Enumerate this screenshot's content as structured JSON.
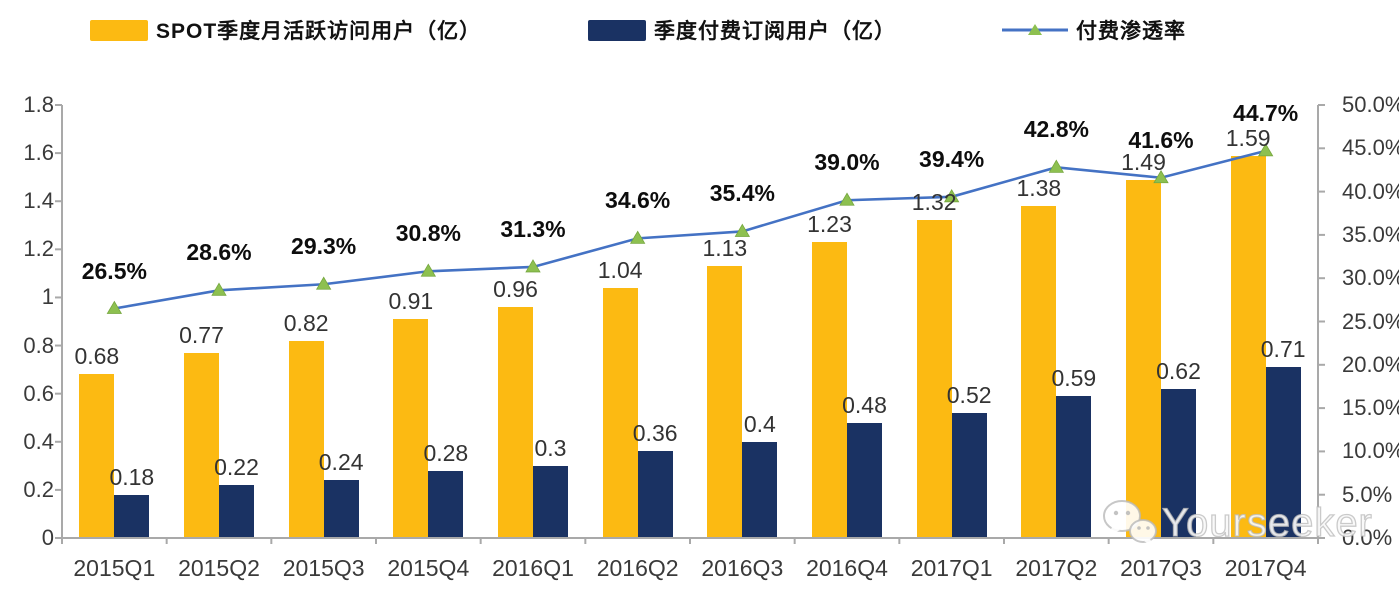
{
  "legend": {
    "items": [
      {
        "label": "SPOT季度月活跃访问用户（亿）",
        "type": "bar",
        "color": "#FCBA12"
      },
      {
        "label": "季度付费订阅用户（亿）",
        "type": "bar",
        "color": "#1A3263"
      },
      {
        "label": "付费渗透率",
        "type": "line",
        "color": "#4472C4",
        "marker_color": "#8DC050"
      }
    ]
  },
  "chart_data": {
    "type": "bar+line",
    "categories": [
      "2015Q1",
      "2015Q2",
      "2015Q3",
      "2015Q4",
      "2016Q1",
      "2016Q2",
      "2016Q3",
      "2016Q4",
      "2017Q1",
      "2017Q2",
      "2017Q3",
      "2017Q4"
    ],
    "series": [
      {
        "name": "SPOT季度月活跃访问用户（亿）",
        "type": "bar",
        "color": "#FCBA12",
        "axis": "left",
        "values": [
          0.68,
          0.77,
          0.82,
          0.91,
          0.96,
          1.04,
          1.13,
          1.23,
          1.32,
          1.38,
          1.49,
          1.59
        ],
        "labels": [
          "0.68",
          "0.77",
          "0.82",
          "0.91",
          "0.96",
          "1.04",
          "1.13",
          "1.23",
          "1.32",
          "1.38",
          "1.49",
          "1.59"
        ]
      },
      {
        "name": "季度付费订阅用户（亿）",
        "type": "bar",
        "color": "#1A3263",
        "axis": "left",
        "values": [
          0.18,
          0.22,
          0.24,
          0.28,
          0.3,
          0.36,
          0.4,
          0.48,
          0.52,
          0.59,
          0.62,
          0.71
        ],
        "labels": [
          "0.18",
          "0.22",
          "0.24",
          "0.28",
          "0.3",
          "0.36",
          "0.4",
          "0.48",
          "0.52",
          "0.59",
          "0.62",
          "0.71"
        ]
      },
      {
        "name": "付费渗透率",
        "type": "line",
        "color": "#4472C4",
        "marker": "triangle",
        "marker_color": "#8DC050",
        "axis": "right",
        "values": [
          26.5,
          28.6,
          29.3,
          30.8,
          31.3,
          34.6,
          35.4,
          39.0,
          39.4,
          42.8,
          41.6,
          44.7
        ],
        "labels": [
          "26.5%",
          "28.6%",
          "29.3%",
          "30.8%",
          "31.3%",
          "34.6%",
          "35.4%",
          "39.0%",
          "39.4%",
          "42.8%",
          "41.6%",
          "44.7%"
        ]
      }
    ],
    "left_axis": {
      "min": 0,
      "max": 1.8,
      "step": 0.2,
      "tick_labels": [
        "0",
        "0.2",
        "0.4",
        "0.6",
        "0.8",
        "1",
        "1.2",
        "1.4",
        "1.6",
        "1.8"
      ]
    },
    "right_axis": {
      "min": 0,
      "max": 50,
      "step": 5,
      "tick_labels": [
        "0.0%",
        "5.0%",
        "10.0%",
        "15.0%",
        "20.0%",
        "25.0%",
        "30.0%",
        "35.0%",
        "40.0%",
        "45.0%",
        "50.0%"
      ]
    },
    "grid": false,
    "legend_position": "top"
  },
  "watermark": {
    "text": "Yourseeker",
    "icon": "wechat-icon"
  }
}
